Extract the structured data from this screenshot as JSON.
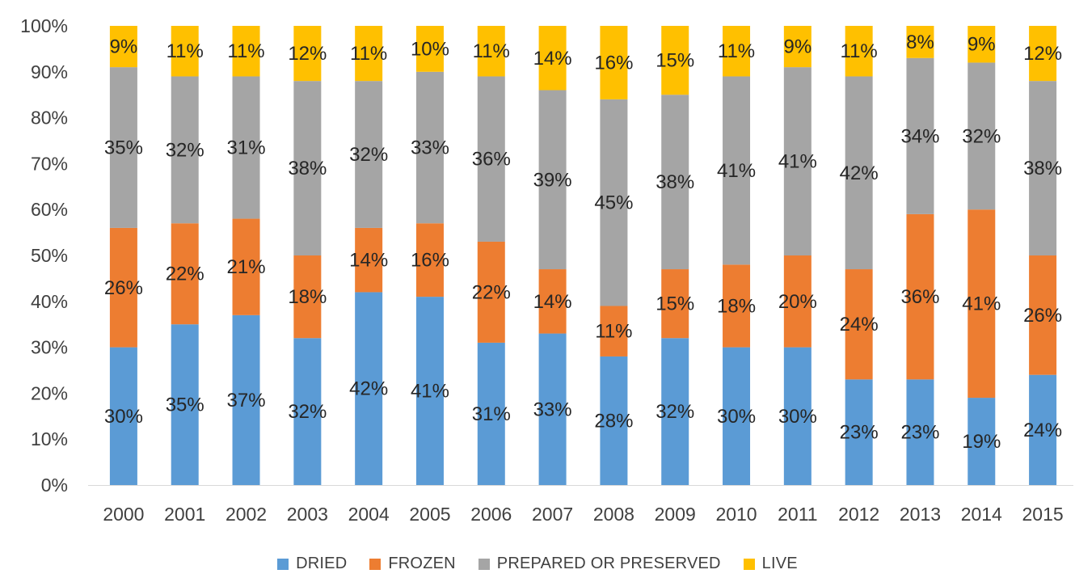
{
  "chart_data": {
    "type": "bar",
    "stacked": true,
    "percent": true,
    "categories": [
      "2000",
      "2001",
      "2002",
      "2003",
      "2004",
      "2005",
      "2006",
      "2007",
      "2008",
      "2009",
      "2010",
      "2011",
      "2012",
      "2013",
      "2014",
      "2015"
    ],
    "series": [
      {
        "name": "DRIED",
        "color": "#5b9bd5",
        "values": [
          30,
          35,
          37,
          32,
          42,
          41,
          31,
          33,
          28,
          32,
          30,
          30,
          23,
          23,
          19,
          24
        ]
      },
      {
        "name": "FROZEN",
        "color": "#ed7d31",
        "values": [
          26,
          22,
          21,
          18,
          14,
          16,
          22,
          14,
          11,
          15,
          18,
          20,
          24,
          36,
          41,
          26
        ]
      },
      {
        "name": "PREPARED OR PRESERVED",
        "color": "#a5a5a5",
        "values": [
          35,
          32,
          31,
          38,
          32,
          33,
          36,
          39,
          45,
          38,
          41,
          41,
          42,
          34,
          32,
          38
        ]
      },
      {
        "name": "LIVE",
        "color": "#ffc000",
        "values": [
          9,
          11,
          11,
          12,
          11,
          10,
          11,
          14,
          16,
          15,
          11,
          9,
          11,
          8,
          9,
          12
        ]
      }
    ],
    "ylim": [
      0,
      100
    ],
    "yticks": [
      "0%",
      "10%",
      "20%",
      "30%",
      "40%",
      "50%",
      "60%",
      "70%",
      "80%",
      "90%",
      "100%"
    ],
    "grid": false,
    "legend_position": "bottom",
    "data_label_suffix": "%"
  }
}
